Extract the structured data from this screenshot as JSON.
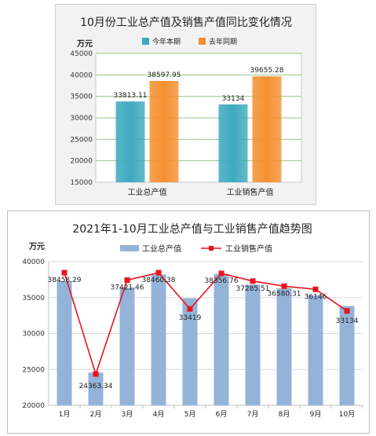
{
  "chart_data": [
    {
      "type": "bar",
      "title": "10月份工业总产值及销售产值同比变化情况",
      "ylabel": "万元",
      "categories": [
        "工业总产值",
        "工业销售产值"
      ],
      "series": [
        {
          "name": "今年本期",
          "values": [
            33813.11,
            33134
          ],
          "labels": [
            "33813.11",
            "33134"
          ],
          "color": "#3eaac0"
        },
        {
          "name": "去年同期",
          "values": [
            38597.95,
            39655.28
          ],
          "labels": [
            "38597.95",
            "39655.28"
          ],
          "color": "#f59030"
        }
      ],
      "ylim": [
        15000,
        45000
      ],
      "yticks": [
        "15000",
        "20000",
        "25000",
        "30000",
        "35000",
        "40000",
        "45000"
      ],
      "grid": true,
      "legend": "top"
    },
    {
      "type": "bar",
      "title": "2021年1-10月工业总产值与工业销售产值趋势图",
      "ylabel": "万元",
      "categories": [
        "1月",
        "2月",
        "3月",
        "4月",
        "5月",
        "6月",
        "7月",
        "8月",
        "9月",
        "10月"
      ],
      "series": [
        {
          "name": "工业总产值",
          "kind": "bar",
          "color": "#94b3d9",
          "values": [
            37300,
            24560,
            36400,
            38200,
            34900,
            38300,
            36800,
            36300,
            35300,
            33813
          ]
        },
        {
          "name": "工业销售产值",
          "kind": "line",
          "color": "#e8141e",
          "values": [
            38458.29,
            24363.34,
            37421.46,
            38460.38,
            33419,
            38356.76,
            37285.51,
            36580.31,
            36146,
            33134
          ],
          "labels": [
            "38458.29",
            "24363.34",
            "37421.46",
            "38460.38",
            "33419",
            "38356.76",
            "37285.51",
            "36580.31",
            "36146",
            "33134"
          ]
        }
      ],
      "ylim": [
        20000,
        40000
      ],
      "yticks": [
        "20000",
        "25000",
        "30000",
        "35000",
        "40000"
      ],
      "grid": true,
      "legend": "top"
    }
  ]
}
